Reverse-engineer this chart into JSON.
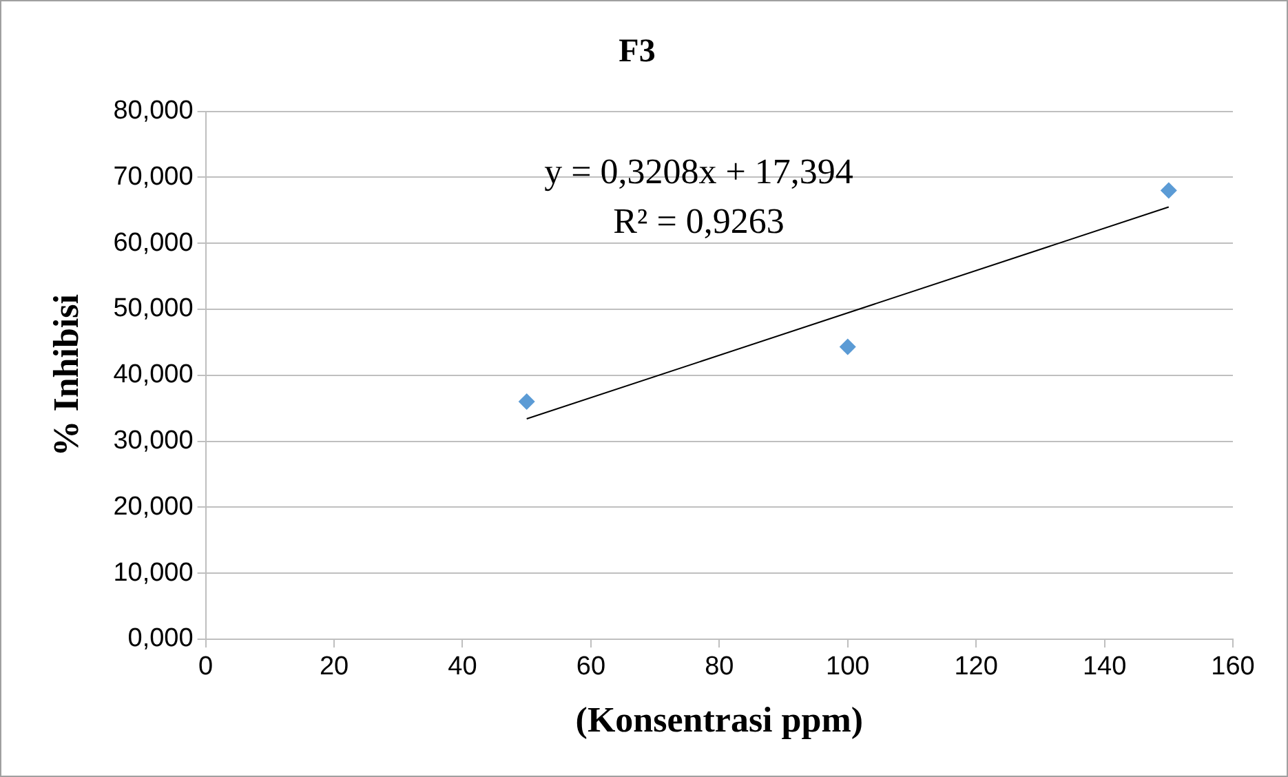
{
  "chart_data": {
    "type": "scatter",
    "title": "F3",
    "xlabel": "(Konsentrasi ppm)",
    "ylabel": "% Inhibisi",
    "series": [
      {
        "type": "scatter",
        "color": "#5b9bd5",
        "x": [
          50,
          100,
          150
        ],
        "values": [
          36,
          44.3,
          68
        ],
        "marker": "diamond"
      },
      {
        "type": "line",
        "color": "#000000",
        "x": [
          50,
          150
        ],
        "values": [
          33.4,
          65.5
        ],
        "marker": "none"
      }
    ],
    "annotations": [
      "y = 0,3208x + 17,394",
      "R² = 0,9263"
    ],
    "xlim": [
      0,
      160
    ],
    "xticks": [
      0,
      20,
      40,
      60,
      80,
      100,
      120,
      140,
      160
    ],
    "ylim": [
      0,
      80
    ],
    "yticks": [
      {
        "value": 0,
        "label": "0,000"
      },
      {
        "value": 10,
        "label": "10,000"
      },
      {
        "value": 20,
        "label": "20,000"
      },
      {
        "value": 30,
        "label": "30,000"
      },
      {
        "value": 40,
        "label": "40,000"
      },
      {
        "value": 50,
        "label": "50,000"
      },
      {
        "value": 60,
        "label": "60,000"
      },
      {
        "value": 70,
        "label": "70,000"
      },
      {
        "value": 80,
        "label": "80,000"
      }
    ],
    "grid": "y",
    "legend": false
  }
}
